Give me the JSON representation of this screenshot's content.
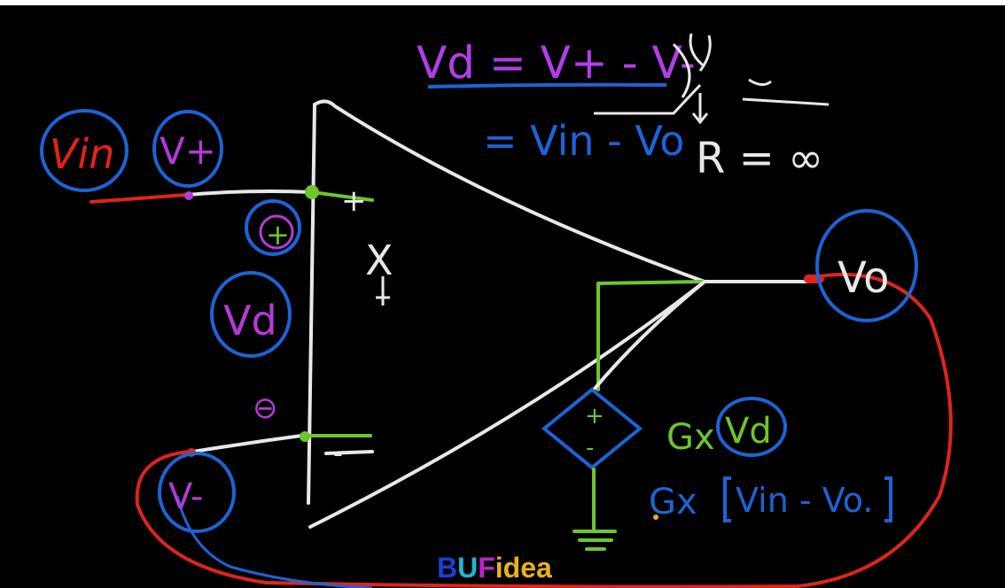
{
  "labels": {
    "vin": "Vin",
    "vplus": "V+",
    "vd": "Vd",
    "vminus": "V-",
    "vo": "Vo",
    "plus_circle": "+",
    "plus_pin": "+",
    "minus_pin": "-",
    "minus_symbol": "⊖",
    "source_plus": "+",
    "source_minus": "-",
    "cross_mark": "X",
    "eq1": "Vd = V+ - V-",
    "eq2": "= Vin - Vo",
    "r_inf": "R = ∞",
    "gain1_g": "Gx",
    "gain1_vd": "Vd",
    "gain2_g": "Gx",
    "gain2_expr": "Vin - Vo."
  },
  "watermark": {
    "b": "B",
    "u": "U",
    "f": "F",
    "idea": "idea"
  },
  "colors": {
    "background": "#000000",
    "wire": "#e8e8e8",
    "input_red": "#e0241c",
    "label_magenta": "#b33bd6",
    "circle_blue": "#1e63d6",
    "wire_green": "#6ec52d",
    "eq_magenta": "#b23ee8",
    "wm_b": "#1a3fd6",
    "wm_u": "#19b7d8",
    "wm_f": "#c21fd0",
    "wm_idea": "#e8b21c"
  }
}
